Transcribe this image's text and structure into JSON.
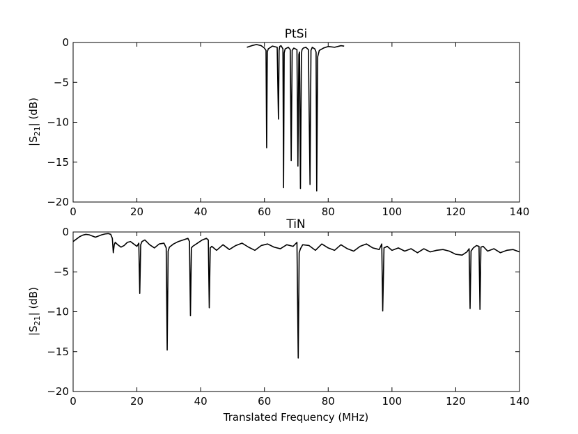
{
  "figure": {
    "xlabel": "Translated Frequency (MHz)"
  },
  "chart_data": [
    {
      "type": "line",
      "title": "PtSi",
      "xlabel": "",
      "ylabel_main": "|S",
      "ylabel_sub": "21",
      "ylabel_tail": "| (dB)",
      "xlim": [
        0,
        140
      ],
      "ylim": [
        -20,
        0
      ],
      "xticks": [
        0,
        20,
        40,
        60,
        80,
        100,
        120,
        140
      ],
      "yticks": [
        0,
        -5,
        -10,
        -15,
        -20
      ],
      "xtick_labels": [
        "0",
        "20",
        "40",
        "60",
        "80",
        "100",
        "120",
        "140"
      ],
      "ytick_labels": [
        "0",
        "−5",
        "−10",
        "−15",
        "−20"
      ],
      "grid": false,
      "line_color": "#000000",
      "series": [
        {
          "x": [
            54.5,
            56,
            57.5,
            59,
            60,
            60.5,
            60.7,
            60.9,
            61.2,
            62.5,
            64,
            64.4,
            64.6,
            64.8,
            65.2,
            65.8,
            66.0,
            66.2,
            66.5,
            67.5,
            68.1,
            68.4,
            68.7,
            69.2,
            70.2,
            70.5,
            70.8,
            71.0,
            71.3,
            71.6,
            71.8,
            72.2,
            73,
            73.8,
            74.3,
            74.6,
            75,
            75.8,
            76.2,
            76.4,
            76.7,
            77.2,
            78.5,
            80,
            82,
            84,
            85
          ],
          "y": [
            -0.6,
            -0.4,
            -0.25,
            -0.4,
            -0.7,
            -1.0,
            -13.2,
            -1.2,
            -0.8,
            -0.45,
            -0.6,
            -9.6,
            -1.0,
            -0.5,
            -0.4,
            -0.8,
            -18.2,
            -1.3,
            -0.8,
            -0.6,
            -0.9,
            -14.8,
            -1.0,
            -0.7,
            -0.9,
            -15.5,
            -1.5,
            -1.2,
            -18.3,
            -1.4,
            -0.9,
            -0.7,
            -0.6,
            -0.9,
            -17.8,
            -1.0,
            -0.6,
            -0.8,
            -1.2,
            -18.6,
            -1.8,
            -1.0,
            -0.7,
            -0.5,
            -0.6,
            -0.4,
            -0.45
          ]
        }
      ]
    },
    {
      "type": "line",
      "title": "TiN",
      "xlabel": "Translated Frequency (MHz)",
      "ylabel_main": "|S",
      "ylabel_sub": "21",
      "ylabel_tail": "| (dB)",
      "xlim": [
        0,
        140
      ],
      "ylim": [
        -20,
        0
      ],
      "xticks": [
        0,
        20,
        40,
        60,
        80,
        100,
        120,
        140
      ],
      "yticks": [
        0,
        -5,
        -10,
        -15,
        -20
      ],
      "xtick_labels": [
        "0",
        "20",
        "40",
        "60",
        "80",
        "100",
        "120",
        "140"
      ],
      "ytick_labels": [
        "0",
        "−5",
        "−10",
        "−15",
        "−20"
      ],
      "grid": false,
      "line_color": "#000000",
      "series": [
        {
          "x": [
            0,
            1,
            2,
            3,
            4,
            5,
            6,
            7,
            8,
            9,
            10,
            11,
            11.8,
            12.3,
            12.6,
            12.9,
            13.2,
            14,
            15,
            16,
            17,
            18,
            19,
            20,
            20.6,
            20.9,
            21.2,
            21.6,
            22.5,
            24,
            25.5,
            27,
            28.5,
            29.2,
            29.5,
            29.8,
            30.2,
            31.5,
            33,
            34.5,
            36,
            36.5,
            36.8,
            37.1,
            37.5,
            39,
            40.5,
            41.8,
            42.4,
            42.7,
            43,
            43.5,
            45,
            47,
            49,
            51,
            53,
            55,
            57,
            59,
            61,
            63,
            65,
            67,
            69,
            70.2,
            70.6,
            70.9,
            71.3,
            72,
            74,
            76,
            78,
            80,
            82,
            84,
            86,
            88,
            90,
            92,
            94,
            96,
            96.8,
            97.1,
            97.5,
            98.5,
            100,
            102,
            104,
            106,
            108,
            110,
            112,
            114,
            116,
            118,
            120,
            122,
            123.5,
            124.2,
            124.5,
            124.8,
            125.5,
            126.5,
            127.3,
            127.6,
            127.9,
            128.6,
            130,
            132,
            134,
            136,
            138,
            140
          ],
          "y": [
            -1.2,
            -0.9,
            -0.6,
            -0.4,
            -0.3,
            -0.35,
            -0.5,
            -0.65,
            -0.5,
            -0.35,
            -0.25,
            -0.2,
            -0.3,
            -0.8,
            -2.6,
            -1.6,
            -1.3,
            -1.6,
            -1.9,
            -1.7,
            -1.3,
            -1.2,
            -1.5,
            -1.8,
            -1.4,
            -7.7,
            -1.6,
            -1.2,
            -1.0,
            -1.6,
            -2.0,
            -1.5,
            -1.4,
            -2.0,
            -14.8,
            -2.4,
            -1.9,
            -1.5,
            -1.2,
            -1.0,
            -0.8,
            -1.2,
            -10.5,
            -2.0,
            -1.8,
            -1.4,
            -1.0,
            -0.8,
            -1.0,
            -9.5,
            -2.0,
            -1.8,
            -2.3,
            -1.6,
            -2.2,
            -1.7,
            -1.4,
            -1.9,
            -2.3,
            -1.7,
            -1.5,
            -1.9,
            -2.1,
            -1.6,
            -1.8,
            -1.3,
            -15.8,
            -2.6,
            -2.1,
            -1.6,
            -1.7,
            -2.3,
            -1.5,
            -2.0,
            -2.3,
            -1.6,
            -2.1,
            -2.4,
            -1.8,
            -1.5,
            -2.0,
            -2.2,
            -1.5,
            -9.9,
            -2.0,
            -1.8,
            -2.3,
            -2.0,
            -2.4,
            -2.1,
            -2.6,
            -2.1,
            -2.5,
            -2.3,
            -2.2,
            -2.4,
            -2.8,
            -2.9,
            -2.5,
            -2.1,
            -9.6,
            -2.4,
            -2.0,
            -1.7,
            -1.8,
            -9.7,
            -1.9,
            -1.8,
            -2.4,
            -2.1,
            -2.6,
            -2.3,
            -2.2,
            -2.5
          ]
        }
      ]
    }
  ]
}
